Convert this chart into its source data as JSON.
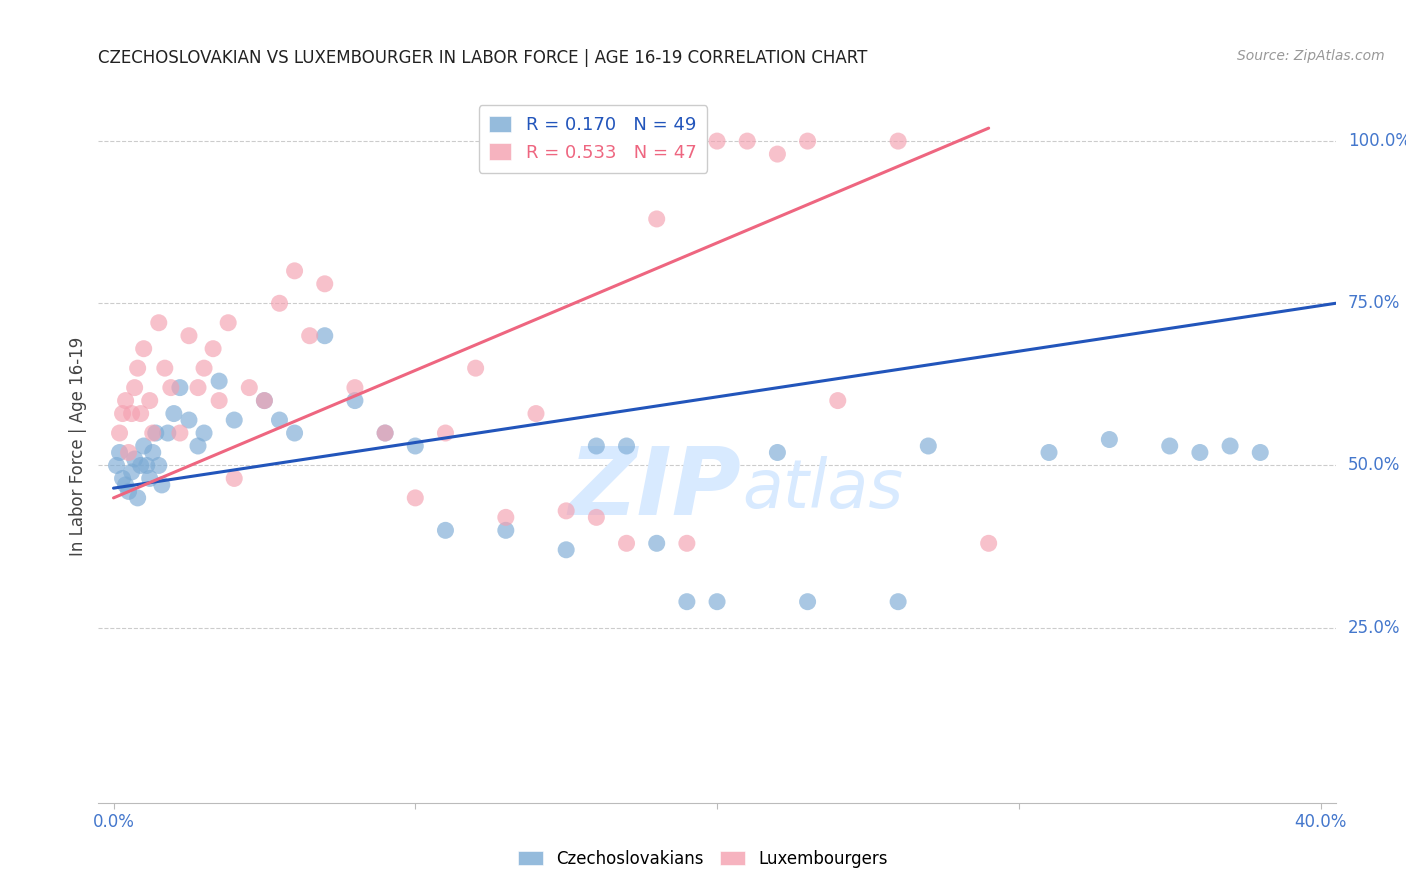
{
  "title": "CZECHOSLOVAKIAN VS LUXEMBOURGER IN LABOR FORCE | AGE 16-19 CORRELATION CHART",
  "source": "Source: ZipAtlas.com",
  "ylabel": "In Labor Force | Age 16-19",
  "y_tick_labels_right": [
    "100.0%",
    "75.0%",
    "50.0%",
    "25.0%"
  ],
  "y_tick_vals": [
    1.0,
    0.75,
    0.5,
    0.25
  ],
  "xlim": [
    -0.005,
    0.405
  ],
  "ylim": [
    -0.02,
    1.08
  ],
  "legend_blue_label": "R = 0.170   N = 49",
  "legend_pink_label": "R = 0.533   N = 47",
  "blue_color": "#7BAAD4",
  "pink_color": "#F4A0B0",
  "blue_line_color": "#2255BB",
  "pink_line_color": "#EE6680",
  "watermark_zip": "ZIP",
  "watermark_atlas": "atlas",
  "blue_scatter_x": [
    0.001,
    0.002,
    0.003,
    0.004,
    0.005,
    0.006,
    0.007,
    0.008,
    0.009,
    0.01,
    0.011,
    0.012,
    0.013,
    0.014,
    0.015,
    0.016,
    0.018,
    0.02,
    0.022,
    0.025,
    0.028,
    0.03,
    0.035,
    0.04,
    0.05,
    0.055,
    0.06,
    0.07,
    0.08,
    0.09,
    0.1,
    0.11,
    0.13,
    0.15,
    0.16,
    0.17,
    0.18,
    0.19,
    0.2,
    0.22,
    0.23,
    0.26,
    0.27,
    0.31,
    0.33,
    0.35,
    0.36,
    0.37,
    0.38
  ],
  "blue_scatter_y": [
    0.5,
    0.52,
    0.48,
    0.47,
    0.46,
    0.49,
    0.51,
    0.45,
    0.5,
    0.53,
    0.5,
    0.48,
    0.52,
    0.55,
    0.5,
    0.47,
    0.55,
    0.58,
    0.62,
    0.57,
    0.53,
    0.55,
    0.63,
    0.57,
    0.6,
    0.57,
    0.55,
    0.7,
    0.6,
    0.55,
    0.53,
    0.4,
    0.4,
    0.37,
    0.53,
    0.53,
    0.38,
    0.29,
    0.29,
    0.52,
    0.29,
    0.29,
    0.53,
    0.52,
    0.54,
    0.53,
    0.52,
    0.53,
    0.52
  ],
  "pink_scatter_x": [
    0.002,
    0.003,
    0.004,
    0.005,
    0.006,
    0.007,
    0.008,
    0.009,
    0.01,
    0.012,
    0.013,
    0.015,
    0.017,
    0.019,
    0.022,
    0.025,
    0.028,
    0.03,
    0.033,
    0.035,
    0.038,
    0.04,
    0.045,
    0.05,
    0.055,
    0.06,
    0.065,
    0.07,
    0.08,
    0.09,
    0.1,
    0.11,
    0.12,
    0.13,
    0.14,
    0.15,
    0.16,
    0.17,
    0.18,
    0.19,
    0.2,
    0.21,
    0.22,
    0.23,
    0.24,
    0.26,
    0.29
  ],
  "pink_scatter_y": [
    0.55,
    0.58,
    0.6,
    0.52,
    0.58,
    0.62,
    0.65,
    0.58,
    0.68,
    0.6,
    0.55,
    0.72,
    0.65,
    0.62,
    0.55,
    0.7,
    0.62,
    0.65,
    0.68,
    0.6,
    0.72,
    0.48,
    0.62,
    0.6,
    0.75,
    0.8,
    0.7,
    0.78,
    0.62,
    0.55,
    0.45,
    0.55,
    0.65,
    0.42,
    0.58,
    0.43,
    0.42,
    0.38,
    0.88,
    0.38,
    1.0,
    1.0,
    0.98,
    1.0,
    0.6,
    1.0,
    0.38
  ],
  "blue_trend_x": [
    0.0,
    0.405
  ],
  "blue_trend_y": [
    0.465,
    0.75
  ],
  "pink_trend_x": [
    0.0,
    0.29
  ],
  "pink_trend_y": [
    0.45,
    1.02
  ]
}
